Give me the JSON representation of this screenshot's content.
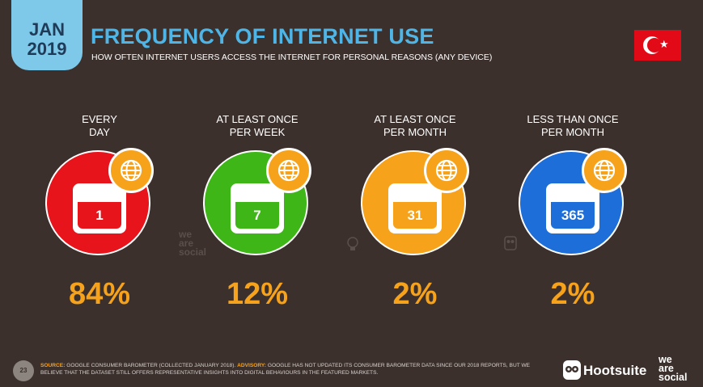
{
  "header": {
    "month": "JAN",
    "year": "2019",
    "title": "FREQUENCY OF INTERNET USE",
    "subtitle": "HOW OFTEN INTERNET USERS ACCESS THE INTERNET FOR PERSONAL REASONS (ANY DEVICE)",
    "flag_icon": "turkey-flag-icon"
  },
  "cards": [
    {
      "label_line1": "EVERY",
      "label_line2": "DAY",
      "calendar_value": "1",
      "percent": "84%",
      "color": "#e8141c",
      "inner_color": "#d40f17"
    },
    {
      "label_line1": "AT LEAST ONCE",
      "label_line2": "PER WEEK",
      "calendar_value": "7",
      "percent": "12%",
      "color": "#3fb618",
      "inner_color": "#35a512"
    },
    {
      "label_line1": "AT LEAST ONCE",
      "label_line2": "PER MONTH",
      "calendar_value": "31",
      "percent": "2%",
      "color": "#f7a21b",
      "inner_color": "#f39a12"
    },
    {
      "label_line1": "LESS THAN ONCE",
      "label_line2": "PER MONTH",
      "calendar_value": "365",
      "percent": "2%",
      "color": "#1d6ed8",
      "inner_color": "#1967cf"
    }
  ],
  "footer": {
    "page_number": "23",
    "source_key": "SOURCE:",
    "source_text": "GOOGLE CONSUMER BAROMETER (COLLECTED JANUARY 2018).",
    "advisory_key": "ADVISORY:",
    "advisory_text": "GOOGLE HAS NOT UPDATED ITS CONSUMER BAROMETER DATA SINCE OUR 2018 REPORTS, BUT WE BELIEVE THAT THE DATASET STILL OFFERS REPRESENTATIVE INSIGHTS INTO DIGITAL BEHAVIOURS IN THE FEATURED MARKETS.",
    "hootsuite": "Hootsuite",
    "we": "we",
    "are": "are",
    "social": "social"
  },
  "watermark": {
    "we": "we",
    "are": "are",
    "social": "social"
  }
}
